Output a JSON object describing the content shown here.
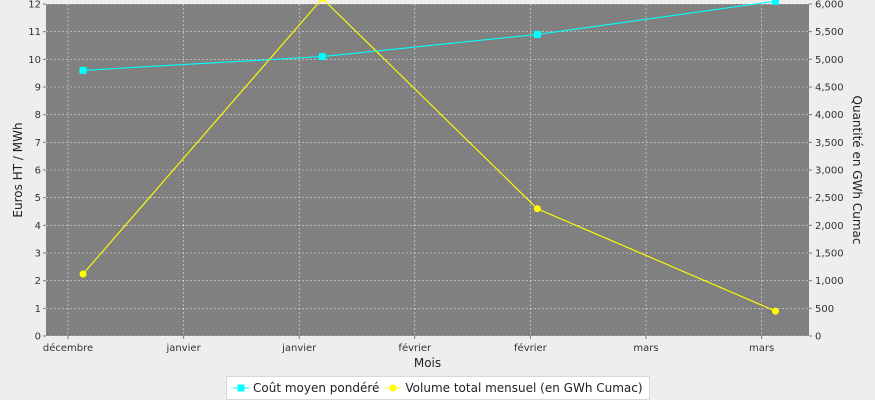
{
  "chart_data": {
    "type": "line",
    "categories": [
      "décembre",
      "janvier",
      "janvier",
      "février",
      "février",
      "mars",
      "mars"
    ],
    "xlabel": "Mois",
    "ylabel_left": "Euros HT / MWh",
    "ylabel_right": "Quantité en GWh Cumac",
    "ylim_left": [
      0,
      12
    ],
    "ylim_right": [
      0,
      6000
    ],
    "yticks_left": [
      "0",
      "1",
      "2",
      "3",
      "4",
      "5",
      "6",
      "7",
      "8",
      "9",
      "10",
      "11",
      "12"
    ],
    "yticks_right": [
      "0",
      "500",
      "1,000",
      "1,500",
      "2,000",
      "2,500",
      "3,000",
      "3,500",
      "4,000",
      "4,500",
      "5,000",
      "5,500",
      "6,000"
    ],
    "grid": true,
    "legend_position": "bottom",
    "series": [
      {
        "name": "Coût moyen pondéré",
        "axis": "left",
        "color": "#00ffff",
        "marker": "square",
        "points": [
          {
            "x": 0.13,
            "y": 9.6
          },
          {
            "x": 2.2,
            "y": 10.1
          },
          {
            "x": 4.06,
            "y": 10.9
          },
          {
            "x": 6.12,
            "y": 12.1
          }
        ]
      },
      {
        "name": "Volume total mensuel (en GWh Cumac)",
        "axis": "right",
        "color": "#ffff00",
        "marker": "circle",
        "points": [
          {
            "x": 0.13,
            "y": 1120
          },
          {
            "x": 2.2,
            "y": 6100
          },
          {
            "x": 4.06,
            "y": 2300
          },
          {
            "x": 6.12,
            "y": 450
          }
        ]
      }
    ]
  }
}
